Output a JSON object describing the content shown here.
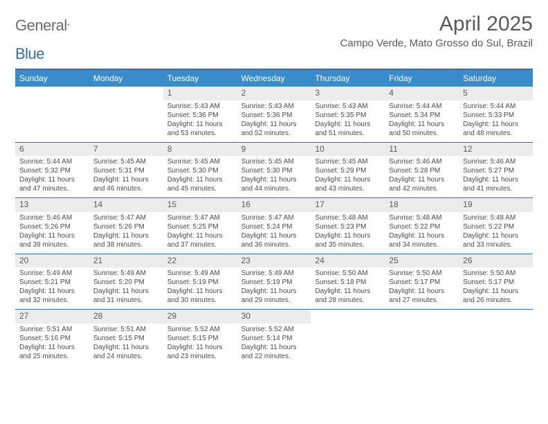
{
  "logo": {
    "word1": "General",
    "word2": "Blue"
  },
  "title": "April 2025",
  "location": "Campo Verde, Mato Grosso do Sul, Brazil",
  "colors": {
    "accent": "#3a8bca",
    "rule": "#2f6fb0",
    "daynum_bg": "#ececec",
    "text": "#4a4a4a",
    "title": "#595959"
  },
  "day_headers": [
    "Sunday",
    "Monday",
    "Tuesday",
    "Wednesday",
    "Thursday",
    "Friday",
    "Saturday"
  ],
  "weeks": [
    [
      null,
      null,
      {
        "n": "1",
        "sr": "5:43 AM",
        "ss": "5:36 PM",
        "dl": "11 hours and 53 minutes."
      },
      {
        "n": "2",
        "sr": "5:43 AM",
        "ss": "5:36 PM",
        "dl": "11 hours and 52 minutes."
      },
      {
        "n": "3",
        "sr": "5:43 AM",
        "ss": "5:35 PM",
        "dl": "11 hours and 51 minutes."
      },
      {
        "n": "4",
        "sr": "5:44 AM",
        "ss": "5:34 PM",
        "dl": "11 hours and 50 minutes."
      },
      {
        "n": "5",
        "sr": "5:44 AM",
        "ss": "5:33 PM",
        "dl": "11 hours and 48 minutes."
      }
    ],
    [
      {
        "n": "6",
        "sr": "5:44 AM",
        "ss": "5:32 PM",
        "dl": "11 hours and 47 minutes."
      },
      {
        "n": "7",
        "sr": "5:45 AM",
        "ss": "5:31 PM",
        "dl": "11 hours and 46 minutes."
      },
      {
        "n": "8",
        "sr": "5:45 AM",
        "ss": "5:30 PM",
        "dl": "11 hours and 45 minutes."
      },
      {
        "n": "9",
        "sr": "5:45 AM",
        "ss": "5:30 PM",
        "dl": "11 hours and 44 minutes."
      },
      {
        "n": "10",
        "sr": "5:45 AM",
        "ss": "5:29 PM",
        "dl": "11 hours and 43 minutes."
      },
      {
        "n": "11",
        "sr": "5:46 AM",
        "ss": "5:28 PM",
        "dl": "11 hours and 42 minutes."
      },
      {
        "n": "12",
        "sr": "5:46 AM",
        "ss": "5:27 PM",
        "dl": "11 hours and 41 minutes."
      }
    ],
    [
      {
        "n": "13",
        "sr": "5:46 AM",
        "ss": "5:26 PM",
        "dl": "11 hours and 39 minutes."
      },
      {
        "n": "14",
        "sr": "5:47 AM",
        "ss": "5:26 PM",
        "dl": "11 hours and 38 minutes."
      },
      {
        "n": "15",
        "sr": "5:47 AM",
        "ss": "5:25 PM",
        "dl": "11 hours and 37 minutes."
      },
      {
        "n": "16",
        "sr": "5:47 AM",
        "ss": "5:24 PM",
        "dl": "11 hours and 36 minutes."
      },
      {
        "n": "17",
        "sr": "5:48 AM",
        "ss": "5:23 PM",
        "dl": "11 hours and 35 minutes."
      },
      {
        "n": "18",
        "sr": "5:48 AM",
        "ss": "5:22 PM",
        "dl": "11 hours and 34 minutes."
      },
      {
        "n": "19",
        "sr": "5:48 AM",
        "ss": "5:22 PM",
        "dl": "11 hours and 33 minutes."
      }
    ],
    [
      {
        "n": "20",
        "sr": "5:49 AM",
        "ss": "5:21 PM",
        "dl": "11 hours and 32 minutes."
      },
      {
        "n": "21",
        "sr": "5:49 AM",
        "ss": "5:20 PM",
        "dl": "11 hours and 31 minutes."
      },
      {
        "n": "22",
        "sr": "5:49 AM",
        "ss": "5:19 PM",
        "dl": "11 hours and 30 minutes."
      },
      {
        "n": "23",
        "sr": "5:49 AM",
        "ss": "5:19 PM",
        "dl": "11 hours and 29 minutes."
      },
      {
        "n": "24",
        "sr": "5:50 AM",
        "ss": "5:18 PM",
        "dl": "11 hours and 28 minutes."
      },
      {
        "n": "25",
        "sr": "5:50 AM",
        "ss": "5:17 PM",
        "dl": "11 hours and 27 minutes."
      },
      {
        "n": "26",
        "sr": "5:50 AM",
        "ss": "5:17 PM",
        "dl": "11 hours and 26 minutes."
      }
    ],
    [
      {
        "n": "27",
        "sr": "5:51 AM",
        "ss": "5:16 PM",
        "dl": "11 hours and 25 minutes."
      },
      {
        "n": "28",
        "sr": "5:51 AM",
        "ss": "5:15 PM",
        "dl": "11 hours and 24 minutes."
      },
      {
        "n": "29",
        "sr": "5:52 AM",
        "ss": "5:15 PM",
        "dl": "11 hours and 23 minutes."
      },
      {
        "n": "30",
        "sr": "5:52 AM",
        "ss": "5:14 PM",
        "dl": "11 hours and 22 minutes."
      },
      null,
      null,
      null
    ]
  ],
  "labels": {
    "sunrise": "Sunrise: ",
    "sunset": "Sunset: ",
    "daylight": "Daylight: "
  }
}
